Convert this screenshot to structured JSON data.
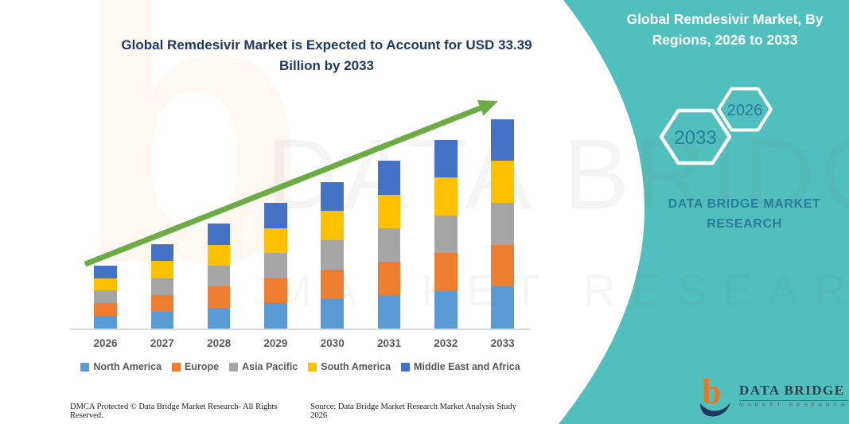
{
  "header": {
    "title": "Global Remdesivir Market, By Regions, 2026 to 2033"
  },
  "chart_title": "Global Remdesivir Market is Expected to Account for USD 33.39 Billion by 2033",
  "hexagons": {
    "large_label": "2033",
    "small_label": "2026"
  },
  "brand_panel": {
    "label": "DATA BRIDGE MARKET RESEARCH"
  },
  "watermark": {
    "monogram": "b",
    "line1": "DATA BRIDGE",
    "line2": "MARKET RESEARCH"
  },
  "logo": {
    "monogram": "b",
    "name": "DATA BRIDGE",
    "subtitle": "MARKET RESEARCH"
  },
  "footer": {
    "left": "DMCA Protected © Data Bridge Market Research-  All Rights Reserved.",
    "right": "Source: Data Bridge Market Research  Market Analysis Study 2026"
  },
  "colors": {
    "teal_background": "#50BFBD",
    "title_navy": "#1F3864",
    "arrow_green": "#6BAC45",
    "axis_gray": "#D9D9D9",
    "label_gray": "#595959",
    "hex_text": "#2B7D9E",
    "brand_panel_text": "#2B7C9A",
    "logo_orange": "#E87722",
    "logo_navy": "#1F3A5F"
  },
  "chart_data": {
    "type": "bar",
    "subtype": "stacked",
    "title": "Global Remdesivir Market is Expected to Account for USD 33.39 Billion by 2033",
    "unit": "USD Billion",
    "categories": [
      "2026",
      "2027",
      "2028",
      "2029",
      "2030",
      "2031",
      "2032",
      "2033"
    ],
    "totals": [
      10.05,
      13.39,
      16.72,
      20.06,
      23.39,
      26.72,
      30.06,
      33.39
    ],
    "series": [
      {
        "name": "North America",
        "color": "#5B9BD5",
        "values": [
          2.01,
          2.68,
          3.34,
          4.01,
          4.68,
          5.34,
          6.01,
          6.68
        ]
      },
      {
        "name": "Europe",
        "color": "#ED7D31",
        "values": [
          2.01,
          2.68,
          3.34,
          4.01,
          4.68,
          5.34,
          6.01,
          6.68
        ]
      },
      {
        "name": "Asia Pacific",
        "color": "#A5A5A5",
        "values": [
          2.01,
          2.68,
          3.34,
          4.01,
          4.68,
          5.34,
          6.01,
          6.68
        ]
      },
      {
        "name": "South America",
        "color": "#FFC000",
        "values": [
          2.01,
          2.68,
          3.35,
          4.01,
          4.68,
          5.35,
          6.01,
          6.68
        ]
      },
      {
        "name": "Middle East and Africa",
        "color": "#4472C4",
        "values": [
          2.01,
          2.67,
          3.35,
          4.02,
          4.67,
          5.35,
          6.02,
          6.67
        ]
      }
    ],
    "legend_position": "bottom",
    "grid": false,
    "y_axis_visible": false,
    "trend_arrow": {
      "color": "#6BAC45",
      "from_category": "2026",
      "to_category": "2033"
    }
  }
}
